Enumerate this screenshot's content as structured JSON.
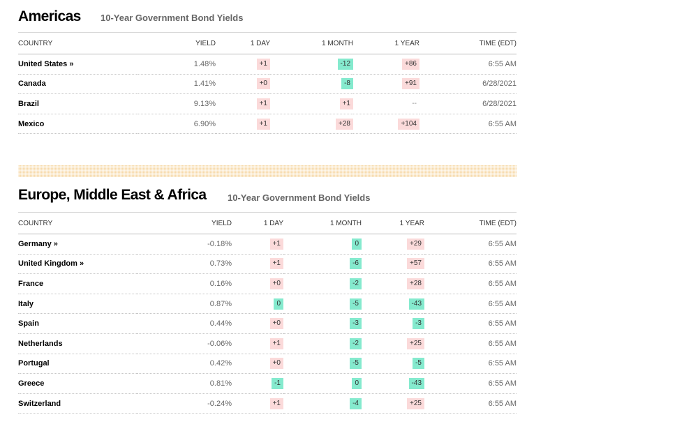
{
  "colors": {
    "positive_chip": "#fbdada",
    "negative_chip": "#85eace",
    "stripe": "#f7d9a8"
  },
  "americas": {
    "title": "Americas",
    "subtitle": "10-Year Government Bond Yields",
    "columns": [
      "COUNTRY",
      "YIELD",
      "1 DAY",
      "1 MONTH",
      "1 YEAR",
      "TIME (EDT)"
    ],
    "rows": [
      {
        "country": "United States »",
        "yield": "1.48%",
        "day": "+1",
        "month": "-12",
        "year": "+86",
        "time": "6:55 AM",
        "day_s": "pos",
        "month_s": "neg",
        "year_s": "pos"
      },
      {
        "country": "Canada",
        "yield": "1.41%",
        "day": "+0",
        "month": "-8",
        "year": "+91",
        "time": "6/28/2021",
        "day_s": "pos",
        "month_s": "neg",
        "year_s": "pos"
      },
      {
        "country": "Brazil",
        "yield": "9.13%",
        "day": "+1",
        "month": "+1",
        "year": "--",
        "time": "6/28/2021",
        "day_s": "pos",
        "month_s": "pos",
        "year_s": "nil"
      },
      {
        "country": "Mexico",
        "yield": "6.90%",
        "day": "+1",
        "month": "+28",
        "year": "+104",
        "time": "6:55 AM",
        "day_s": "pos",
        "month_s": "pos",
        "year_s": "pos"
      }
    ]
  },
  "emea": {
    "title": "Europe, Middle East & Africa",
    "subtitle": "10-Year Government Bond Yields",
    "columns": [
      "COUNTRY",
      "YIELD",
      "1 DAY",
      "1 MONTH",
      "1 YEAR",
      "TIME (EDT)"
    ],
    "rows": [
      {
        "country": "Germany »",
        "yield": "-0.18%",
        "day": "+1",
        "month": "0",
        "year": "+29",
        "time": "6:55 AM",
        "day_s": "pos",
        "month_s": "neg",
        "year_s": "pos"
      },
      {
        "country": "United Kingdom »",
        "yield": "0.73%",
        "day": "+1",
        "month": "-6",
        "year": "+57",
        "time": "6:55 AM",
        "day_s": "pos",
        "month_s": "neg",
        "year_s": "pos"
      },
      {
        "country": "France",
        "yield": "0.16%",
        "day": "+0",
        "month": "-2",
        "year": "+28",
        "time": "6:55 AM",
        "day_s": "pos",
        "month_s": "neg",
        "year_s": "pos"
      },
      {
        "country": "Italy",
        "yield": "0.87%",
        "day": "0",
        "month": "-5",
        "year": "-43",
        "time": "6:55 AM",
        "day_s": "neg",
        "month_s": "neg",
        "year_s": "neg"
      },
      {
        "country": "Spain",
        "yield": "0.44%",
        "day": "+0",
        "month": "-3",
        "year": "-3",
        "time": "6:55 AM",
        "day_s": "pos",
        "month_s": "neg",
        "year_s": "neg"
      },
      {
        "country": "Netherlands",
        "yield": "-0.06%",
        "day": "+1",
        "month": "-2",
        "year": "+25",
        "time": "6:55 AM",
        "day_s": "pos",
        "month_s": "neg",
        "year_s": "pos"
      },
      {
        "country": "Portugal",
        "yield": "0.42%",
        "day": "+0",
        "month": "-5",
        "year": "-5",
        "time": "6:55 AM",
        "day_s": "pos",
        "month_s": "neg",
        "year_s": "neg"
      },
      {
        "country": "Greece",
        "yield": "0.81%",
        "day": "-1",
        "month": "0",
        "year": "-43",
        "time": "6:55 AM",
        "day_s": "neg",
        "month_s": "neg",
        "year_s": "neg"
      },
      {
        "country": "Switzerland",
        "yield": "-0.24%",
        "day": "+1",
        "month": "-4",
        "year": "+25",
        "time": "6:55 AM",
        "day_s": "pos",
        "month_s": "neg",
        "year_s": "pos"
      }
    ]
  }
}
